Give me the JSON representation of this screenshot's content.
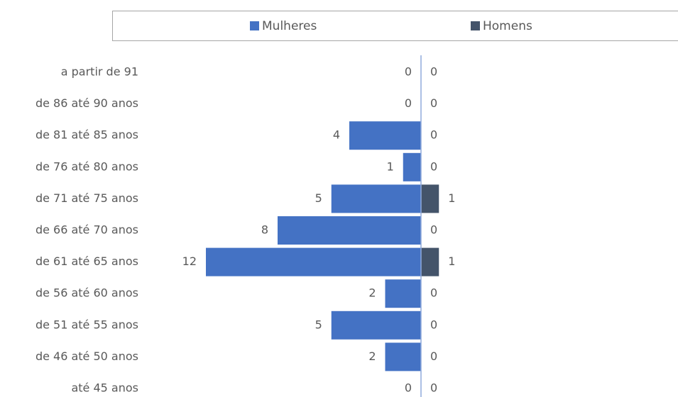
{
  "chart_data": {
    "type": "bar",
    "categories": [
      "a partir de 91",
      "de 86 até 90 anos",
      "de 81 até 85 anos",
      "de 76 até 80 anos",
      "de 71 até 75 anos",
      "de 66 até 70 anos",
      "de 61 até 65 anos",
      "de 56 até 60 anos",
      "de 51 até 55 anos",
      "de 46 até 50 anos",
      "até 45 anos"
    ],
    "series": [
      {
        "name": "Mulheres",
        "color": "#4472c4",
        "values": [
          0,
          0,
          4,
          1,
          5,
          8,
          12,
          2,
          5,
          2,
          0
        ]
      },
      {
        "name": "Homens",
        "color": "#44546a",
        "values": [
          0,
          0,
          0,
          0,
          1,
          0,
          1,
          0,
          0,
          0,
          0
        ]
      }
    ]
  }
}
